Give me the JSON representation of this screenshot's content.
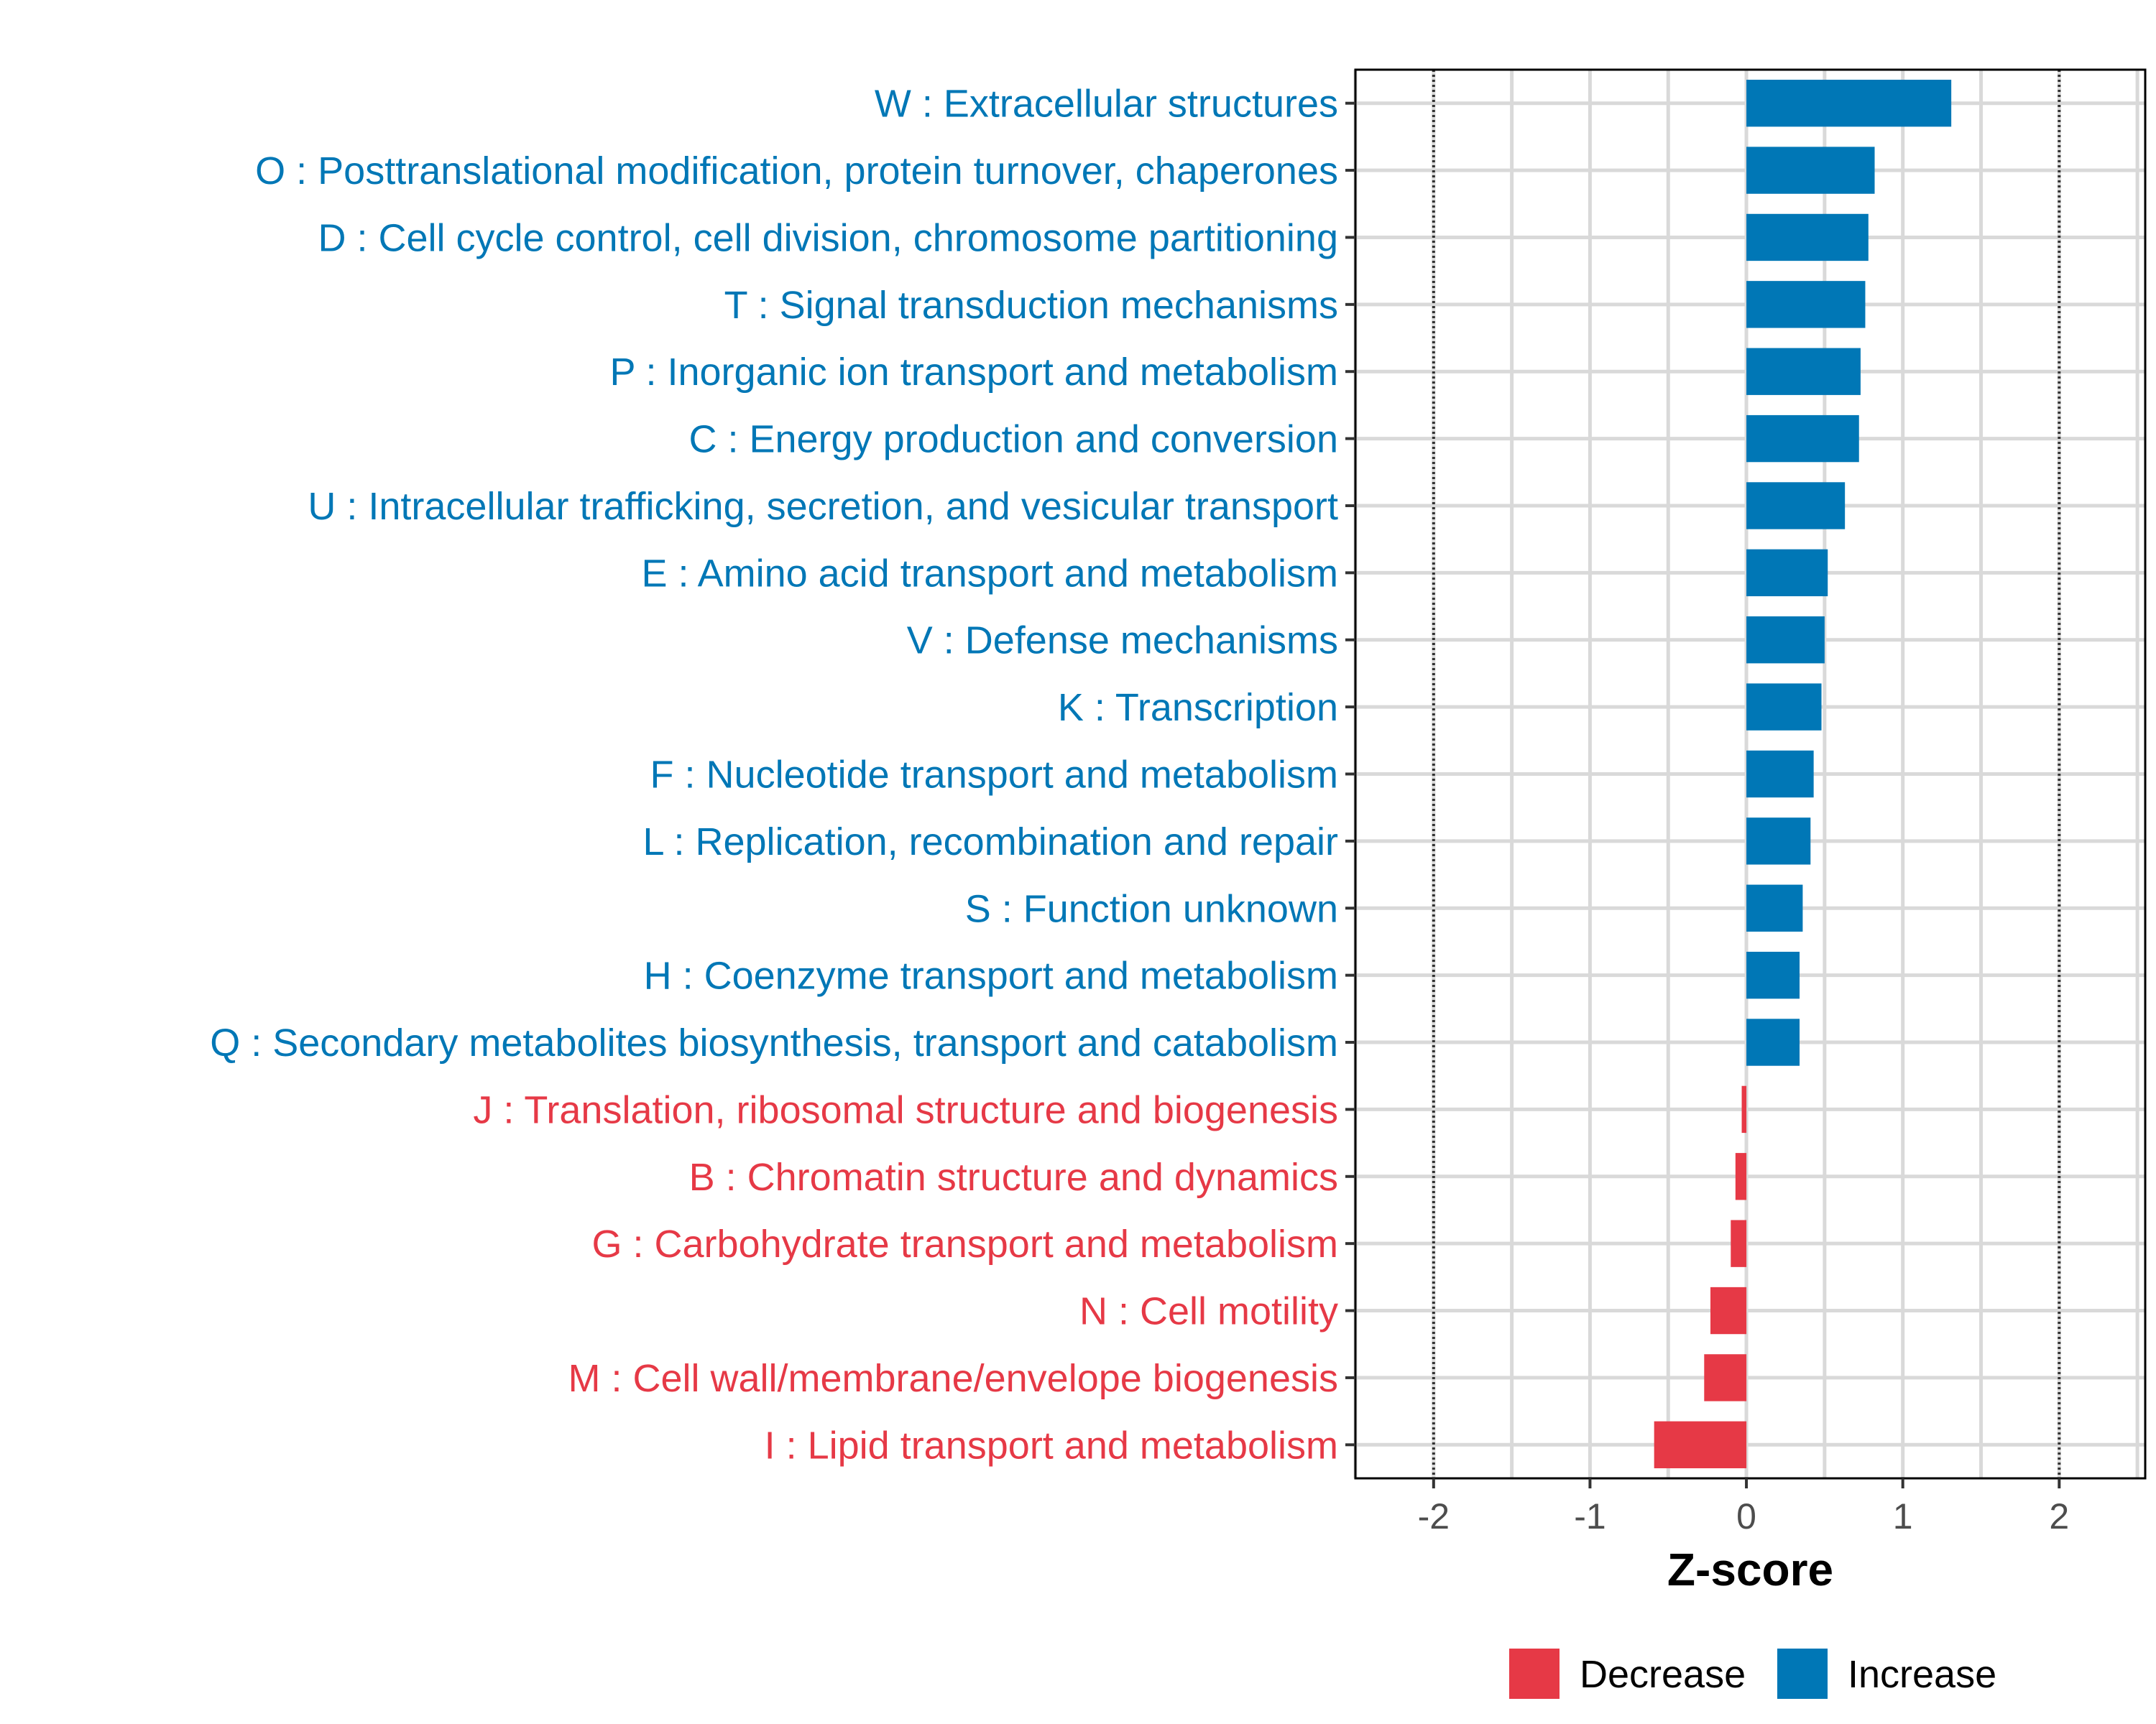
{
  "chart_data": {
    "type": "bar",
    "orientation": "horizontal",
    "xlabel": "Z-score",
    "xlim": [
      -2.5,
      2.55
    ],
    "xticks": [
      -2,
      -1,
      0,
      1,
      2
    ],
    "reference_lines": [
      -2,
      2
    ],
    "grid": true,
    "colors": {
      "Increase": "#0077b6",
      "Decrease": "#e63946"
    },
    "categories": [
      "W : Extracellular structures",
      "O : Posttranslational modification, protein turnover, chaperones",
      "D : Cell cycle control, cell division, chromosome partitioning",
      "T : Signal transduction mechanisms",
      "P : Inorganic ion transport and metabolism",
      "C : Energy production and conversion",
      "U : Intracellular trafficking, secretion, and vesicular transport",
      "E : Amino acid transport and metabolism",
      "V : Defense mechanisms",
      "K : Transcription",
      "F : Nucleotide transport and metabolism",
      "L : Replication, recombination and repair",
      "S : Function unknown",
      "H : Coenzyme transport and metabolism",
      "Q : Secondary metabolites biosynthesis, transport and catabolism",
      "J : Translation, ribosomal structure and biogenesis",
      "B : Chromatin structure and dynamics",
      "G : Carbohydrate transport and metabolism",
      "N : Cell motility",
      "M : Cell wall/membrane/envelope biogenesis",
      "I : Lipid transport and metabolism"
    ],
    "values": [
      1.31,
      0.82,
      0.78,
      0.76,
      0.73,
      0.72,
      0.63,
      0.52,
      0.5,
      0.48,
      0.43,
      0.41,
      0.36,
      0.34,
      0.34,
      -0.03,
      -0.07,
      -0.1,
      -0.23,
      -0.27,
      -0.59
    ],
    "direction": [
      "Increase",
      "Increase",
      "Increase",
      "Increase",
      "Increase",
      "Increase",
      "Increase",
      "Increase",
      "Increase",
      "Increase",
      "Increase",
      "Increase",
      "Increase",
      "Increase",
      "Increase",
      "Decrease",
      "Decrease",
      "Decrease",
      "Decrease",
      "Decrease",
      "Decrease"
    ],
    "legend": {
      "position": "bottom",
      "entries": [
        {
          "label": "Decrease",
          "color": "#e63946"
        },
        {
          "label": "Increase",
          "color": "#0077b6"
        }
      ]
    }
  }
}
